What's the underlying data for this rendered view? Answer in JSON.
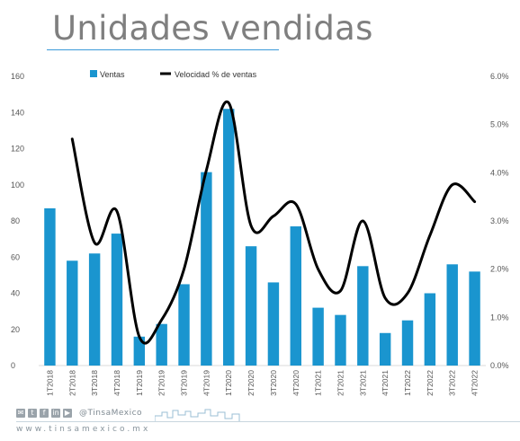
{
  "title": "Unidades vendidas",
  "footer": {
    "handle": "@TinsaMexico",
    "website": "www.tinsamexico.mx",
    "social_icons": [
      "share-icon",
      "twitter-icon",
      "facebook-icon",
      "linkedin-icon",
      "youtube-icon"
    ]
  },
  "chart_data": {
    "type": "bar",
    "categories": [
      "1T2018",
      "2T2018",
      "3T2018",
      "4T2018",
      "1T2019",
      "2T2019",
      "3T2019",
      "4T2019",
      "1T2020",
      "2T2020",
      "3T2020",
      "4T2020",
      "1T2021",
      "2T2021",
      "3T2021",
      "4T2021",
      "1T2022",
      "2T2022",
      "3T2022",
      "4T2022"
    ],
    "series": [
      {
        "name": "Ventas",
        "type": "bar",
        "axis": "left",
        "color": "#1a95cf",
        "values": [
          87,
          58,
          62,
          73,
          16,
          23,
          45,
          107,
          142,
          66,
          46,
          77,
          32,
          28,
          55,
          18,
          25,
          40,
          56,
          52
        ]
      },
      {
        "name": "Velocidad % de ventas",
        "type": "line",
        "axis": "right",
        "color": "#000000",
        "values": [
          null,
          4.7,
          2.55,
          3.2,
          0.6,
          0.95,
          2.0,
          4.05,
          5.45,
          2.9,
          3.1,
          3.35,
          2.0,
          1.55,
          3.0,
          1.4,
          1.5,
          2.7,
          3.75,
          3.4
        ]
      }
    ],
    "y_left": {
      "min": 0,
      "max": 160,
      "ticks": [
        "0",
        "20",
        "40",
        "60",
        "80",
        "100",
        "120",
        "140",
        "160"
      ]
    },
    "y_right": {
      "min": 0,
      "max": 6,
      "ticks": [
        "0.0%",
        "1.0%",
        "2.0%",
        "3.0%",
        "4.0%",
        "5.0%",
        "6.0%"
      ]
    },
    "legend_position": "top",
    "grid": false
  }
}
